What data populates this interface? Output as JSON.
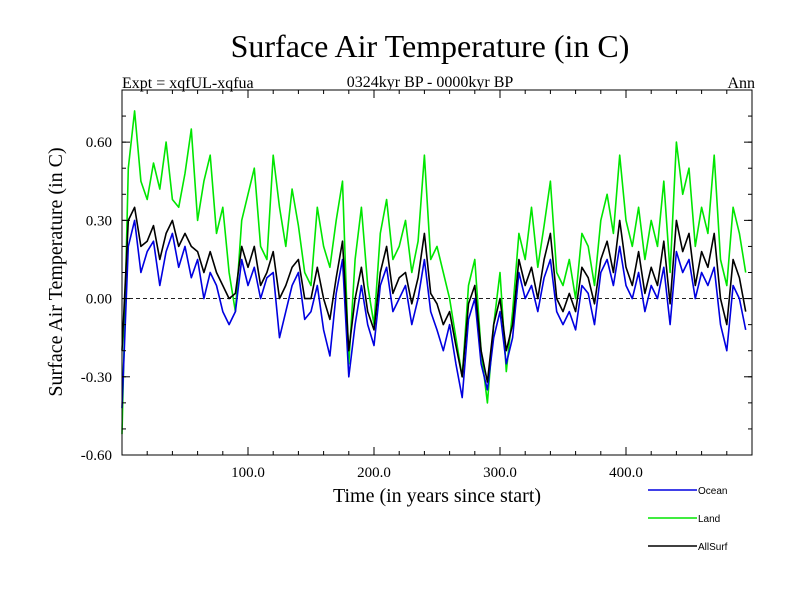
{
  "header": {
    "title": "Surface Air Temperature (in C)",
    "subtitle": "0324kyr BP - 0000kyr BP",
    "experiment": "Expt = xqfUL-xqfua",
    "season": "Ann"
  },
  "chart_data": {
    "type": "line",
    "title": "Surface Air Temperature (in C)",
    "subtitle": "0324kyr BP - 0000kyr BP",
    "xlabel": "Time (in years since start)",
    "ylabel": "Surface Air Temperature (in C)",
    "xlim": [
      0,
      500
    ],
    "ylim": [
      -0.6,
      0.8
    ],
    "xticks": [
      100,
      200,
      300,
      400
    ],
    "xtick_labels": [
      "100.0",
      "200.0",
      "300.0",
      "400.0"
    ],
    "yticks": [
      -0.6,
      -0.3,
      0.0,
      0.3,
      0.6
    ],
    "ytick_labels": [
      "-0.60",
      "-0.30",
      "0.00",
      "0.30",
      "0.60"
    ],
    "zero_line": 0.0,
    "legend_position": "bottom-right, below plot",
    "x_step": 5,
    "series": [
      {
        "name": "Land",
        "color": "#00e600",
        "values": [
          -0.52,
          0.5,
          0.72,
          0.45,
          0.38,
          0.52,
          0.42,
          0.6,
          0.38,
          0.35,
          0.48,
          0.65,
          0.3,
          0.45,
          0.55,
          0.25,
          0.35,
          0.1,
          -0.05,
          0.3,
          0.4,
          0.5,
          0.2,
          0.15,
          0.55,
          0.35,
          0.2,
          0.42,
          0.28,
          0.1,
          0.05,
          0.35,
          0.2,
          0.12,
          0.3,
          0.45,
          -0.25,
          0.15,
          0.35,
          0.05,
          -0.1,
          0.25,
          0.38,
          0.15,
          0.2,
          0.3,
          0.1,
          0.22,
          0.55,
          0.15,
          0.2,
          0.1,
          0.0,
          -0.15,
          -0.3,
          0.05,
          0.15,
          -0.2,
          -0.4,
          -0.1,
          0.1,
          -0.28,
          -0.05,
          0.25,
          0.15,
          0.35,
          0.12,
          0.28,
          0.45,
          0.1,
          0.05,
          0.15,
          0.0,
          0.25,
          0.2,
          0.05,
          0.3,
          0.4,
          0.25,
          0.55,
          0.3,
          0.2,
          0.35,
          0.15,
          0.3,
          0.2,
          0.45,
          0.1,
          0.6,
          0.4,
          0.5,
          0.2,
          0.35,
          0.25,
          0.55,
          0.15,
          0.05,
          0.35,
          0.25,
          0.1
        ]
      },
      {
        "name": "Ocean",
        "color": "#0000e0",
        "values": [
          -0.42,
          0.2,
          0.3,
          0.1,
          0.18,
          0.22,
          0.05,
          0.18,
          0.25,
          0.12,
          0.2,
          0.08,
          0.15,
          0.0,
          0.1,
          0.05,
          -0.05,
          -0.1,
          -0.05,
          0.15,
          0.05,
          0.12,
          0.0,
          0.08,
          0.1,
          -0.15,
          -0.05,
          0.05,
          0.1,
          -0.08,
          -0.05,
          0.05,
          -0.12,
          -0.22,
          0.02,
          0.15,
          -0.3,
          -0.1,
          0.05,
          -0.1,
          -0.18,
          0.05,
          0.12,
          -0.05,
          0.0,
          0.05,
          -0.1,
          0.0,
          0.15,
          -0.05,
          -0.12,
          -0.2,
          -0.1,
          -0.25,
          -0.38,
          -0.08,
          0.0,
          -0.25,
          -0.35,
          -0.15,
          -0.05,
          -0.25,
          -0.15,
          0.1,
          0.0,
          0.05,
          -0.05,
          0.08,
          0.15,
          -0.05,
          -0.1,
          -0.05,
          -0.12,
          0.05,
          0.02,
          -0.1,
          0.1,
          0.15,
          0.05,
          0.2,
          0.05,
          0.0,
          0.1,
          -0.05,
          0.05,
          0.0,
          0.12,
          -0.1,
          0.18,
          0.1,
          0.15,
          0.0,
          0.1,
          0.05,
          0.12,
          -0.1,
          -0.2,
          0.05,
          0.0,
          -0.12
        ]
      },
      {
        "name": "AllSurf",
        "color": "#000000",
        "values": [
          -0.2,
          0.3,
          0.35,
          0.2,
          0.22,
          0.28,
          0.15,
          0.25,
          0.3,
          0.2,
          0.25,
          0.2,
          0.18,
          0.1,
          0.18,
          0.1,
          0.05,
          0.0,
          0.02,
          0.2,
          0.12,
          0.2,
          0.05,
          0.1,
          0.18,
          0.0,
          0.05,
          0.12,
          0.15,
          0.0,
          0.0,
          0.12,
          0.0,
          -0.08,
          0.08,
          0.22,
          -0.2,
          0.0,
          0.12,
          -0.05,
          -0.12,
          0.1,
          0.2,
          0.02,
          0.08,
          0.1,
          -0.02,
          0.08,
          0.25,
          0.02,
          -0.02,
          -0.1,
          -0.05,
          -0.18,
          -0.3,
          -0.02,
          0.05,
          -0.2,
          -0.32,
          -0.1,
          0.0,
          -0.2,
          -0.1,
          0.15,
          0.05,
          0.12,
          0.0,
          0.15,
          0.25,
          0.0,
          -0.05,
          0.02,
          -0.05,
          0.12,
          0.08,
          -0.02,
          0.15,
          0.22,
          0.1,
          0.3,
          0.12,
          0.05,
          0.18,
          0.02,
          0.12,
          0.05,
          0.22,
          -0.02,
          0.3,
          0.18,
          0.25,
          0.05,
          0.18,
          0.12,
          0.25,
          0.0,
          -0.1,
          0.15,
          0.08,
          -0.05
        ]
      }
    ]
  }
}
